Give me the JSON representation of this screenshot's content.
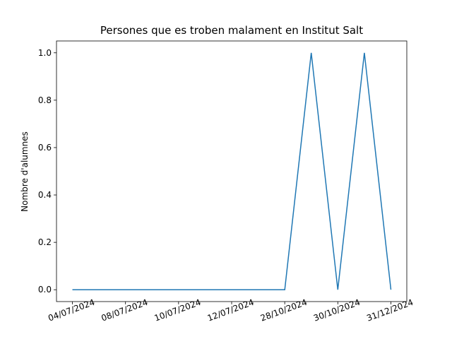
{
  "chart_data": {
    "type": "line",
    "title": "Persones que es troben malament en Institut Salt",
    "xlabel": "",
    "ylabel": "Nombre d'alumnes",
    "categories": [
      "04/07/2024",
      "08/07/2024",
      "10/07/2024",
      "12/07/2024",
      "28/10/2024",
      "30/10/2024",
      "31/12/2024"
    ],
    "x": [
      0,
      0.5,
      1,
      1.5,
      2,
      2.5,
      3,
      3.5,
      4,
      4.5,
      5,
      5.5,
      6
    ],
    "series": [
      {
        "values": [
          0,
          0,
          0,
          0,
          0,
          0,
          0,
          0,
          0,
          1,
          0,
          1,
          0
        ],
        "color": "#1f77b4"
      }
    ],
    "yticks": [
      "0.0",
      "0.2",
      "0.4",
      "0.6",
      "0.8",
      "1.0"
    ],
    "ylim": [
      -0.05,
      1.05
    ],
    "xlim": [
      -0.3,
      6.3
    ],
    "grid": false,
    "legend": false
  }
}
